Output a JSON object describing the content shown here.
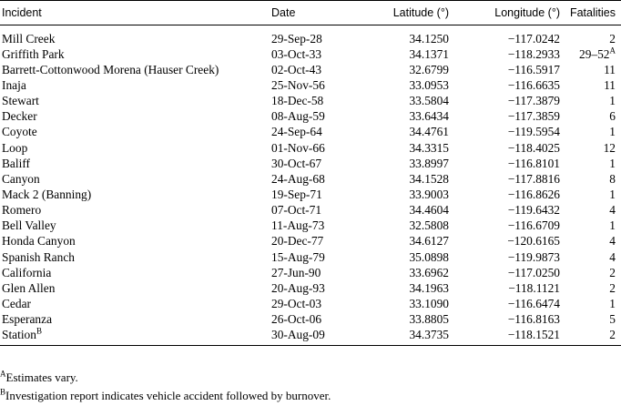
{
  "table": {
    "headers": {
      "incident": "Incident",
      "date": "Date",
      "latitude": "Latitude (°)",
      "longitude": "Longitude (°)",
      "fatalities": "Fatalities"
    },
    "rows": [
      {
        "incident": "Mill Creek",
        "sup": "",
        "date": "29-Sep-28",
        "lat": "34.1250",
        "lon": "−117.0242",
        "fat": "2",
        "fat_sup": ""
      },
      {
        "incident": "Griffith Park",
        "sup": "",
        "date": "03-Oct-33",
        "lat": "34.1371",
        "lon": "−118.2933",
        "fat": "29–52",
        "fat_sup": "A"
      },
      {
        "incident": "Barrett-Cottonwood Morena (Hauser Creek)",
        "sup": "",
        "date": "02-Oct-43",
        "lat": "32.6799",
        "lon": "−116.5917",
        "fat": "11",
        "fat_sup": ""
      },
      {
        "incident": "Inaja",
        "sup": "",
        "date": "25-Nov-56",
        "lat": "33.0953",
        "lon": "−116.6635",
        "fat": "11",
        "fat_sup": ""
      },
      {
        "incident": "Stewart",
        "sup": "",
        "date": "18-Dec-58",
        "lat": "33.5804",
        "lon": "−117.3879",
        "fat": "1",
        "fat_sup": ""
      },
      {
        "incident": "Decker",
        "sup": "",
        "date": "08-Aug-59",
        "lat": "33.6434",
        "lon": "−117.3859",
        "fat": "6",
        "fat_sup": ""
      },
      {
        "incident": "Coyote",
        "sup": "",
        "date": "24-Sep-64",
        "lat": "34.4761",
        "lon": "−119.5954",
        "fat": "1",
        "fat_sup": ""
      },
      {
        "incident": "Loop",
        "sup": "",
        "date": "01-Nov-66",
        "lat": "34.3315",
        "lon": "−118.4025",
        "fat": "12",
        "fat_sup": ""
      },
      {
        "incident": "Baliff",
        "sup": "",
        "date": "30-Oct-67",
        "lat": "33.8997",
        "lon": "−116.8101",
        "fat": "1",
        "fat_sup": ""
      },
      {
        "incident": "Canyon",
        "sup": "",
        "date": "24-Aug-68",
        "lat": "34.1528",
        "lon": "−117.8816",
        "fat": "8",
        "fat_sup": ""
      },
      {
        "incident": "Mack 2 (Banning)",
        "sup": "",
        "date": "19-Sep-71",
        "lat": "33.9003",
        "lon": "−116.8626",
        "fat": "1",
        "fat_sup": ""
      },
      {
        "incident": "Romero",
        "sup": "",
        "date": "07-Oct-71",
        "lat": "34.4604",
        "lon": "−119.6432",
        "fat": "4",
        "fat_sup": ""
      },
      {
        "incident": "Bell Valley",
        "sup": "",
        "date": "11-Aug-73",
        "lat": "32.5808",
        "lon": "−116.6709",
        "fat": "1",
        "fat_sup": ""
      },
      {
        "incident": "Honda Canyon",
        "sup": "",
        "date": "20-Dec-77",
        "lat": "34.6127",
        "lon": "−120.6165",
        "fat": "4",
        "fat_sup": ""
      },
      {
        "incident": "Spanish Ranch",
        "sup": "",
        "date": "15-Aug-79",
        "lat": "35.0898",
        "lon": "−119.9873",
        "fat": "4",
        "fat_sup": ""
      },
      {
        "incident": "California",
        "sup": "",
        "date": "27-Jun-90",
        "lat": "33.6962",
        "lon": "−117.0250",
        "fat": "2",
        "fat_sup": ""
      },
      {
        "incident": "Glen Allen",
        "sup": "",
        "date": "20-Aug-93",
        "lat": "34.1963",
        "lon": "−118.1121",
        "fat": "2",
        "fat_sup": ""
      },
      {
        "incident": "Cedar",
        "sup": "",
        "date": "29-Oct-03",
        "lat": "33.1090",
        "lon": "−116.6474",
        "fat": "1",
        "fat_sup": ""
      },
      {
        "incident": "Esperanza",
        "sup": "",
        "date": "26-Oct-06",
        "lat": "33.8805",
        "lon": "−116.8163",
        "fat": "5",
        "fat_sup": ""
      },
      {
        "incident": "Station",
        "sup": "B",
        "date": "30-Aug-09",
        "lat": "34.3735",
        "lon": "−118.1521",
        "fat": "2",
        "fat_sup": ""
      }
    ]
  },
  "footnotes": [
    {
      "mark": "A",
      "text": "Estimates vary."
    },
    {
      "mark": "B",
      "text": "Investigation report indicates vehicle accident followed by burnover."
    }
  ]
}
